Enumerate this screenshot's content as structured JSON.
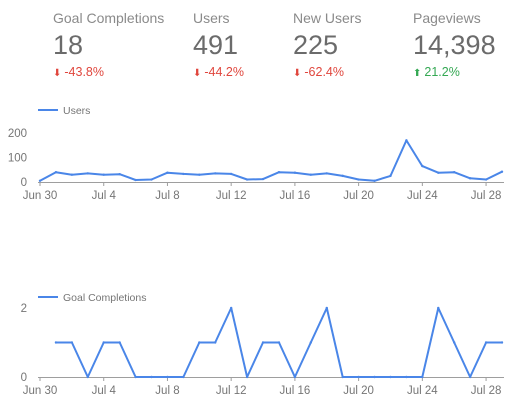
{
  "metrics": [
    {
      "label": "Goal Completions",
      "value": "18",
      "change": "-43.8%",
      "direction": "down"
    },
    {
      "label": "Users",
      "value": "491",
      "change": "-44.2%",
      "direction": "down"
    },
    {
      "label": "New Users",
      "value": "225",
      "change": "-62.4%",
      "direction": "down"
    },
    {
      "label": "Pageviews",
      "value": "14,398",
      "change": "21.2%",
      "direction": "up"
    }
  ],
  "colors": {
    "line": "#4a86e8",
    "down": "#e0463d",
    "up": "#34a853",
    "axis": "#9e9e9e",
    "grid": "#e6e6e6"
  },
  "icons": {
    "down": "down-arrow-icon",
    "up": "up-arrow-icon"
  },
  "chart_data": [
    {
      "type": "line",
      "legend": "Users",
      "legend_position": "top-left",
      "x_start": "Jun 30",
      "x_end": "Jul 28",
      "x_ticks": [
        "Jun 30",
        "Jul 4",
        "Jul 8",
        "Jul 12",
        "Jul 16",
        "Jul 20",
        "Jul 24",
        "Jul 28"
      ],
      "y_ticks": [
        "0",
        "100",
        "200"
      ],
      "ylim": [
        0,
        200
      ],
      "grid": false,
      "series": [
        {
          "name": "Users",
          "values": [
            5,
            40,
            30,
            35,
            30,
            32,
            8,
            10,
            38,
            33,
            30,
            35,
            33,
            10,
            12,
            40,
            38,
            30,
            35,
            25,
            10,
            5,
            25,
            170,
            65,
            38,
            40,
            15,
            10,
            42
          ]
        }
      ]
    },
    {
      "type": "line",
      "legend": "Goal Completions",
      "legend_position": "top-left",
      "x_start": "Jun 30",
      "x_end": "Jul 28",
      "x_ticks": [
        "Jun 30",
        "Jul 4",
        "Jul 8",
        "Jul 12",
        "Jul 16",
        "Jul 20",
        "Jul 24",
        "Jul 28"
      ],
      "y_ticks": [
        "0",
        "2"
      ],
      "ylim": [
        0,
        2
      ],
      "grid": false,
      "series": [
        {
          "name": "Goal Completions",
          "values": [
            null,
            1,
            1,
            0,
            1,
            1,
            0,
            0,
            0,
            0,
            1,
            1,
            2,
            0,
            1,
            1,
            0,
            1,
            2,
            0,
            0,
            0,
            0,
            0,
            0,
            2,
            1,
            0,
            1,
            1
          ]
        }
      ]
    }
  ]
}
